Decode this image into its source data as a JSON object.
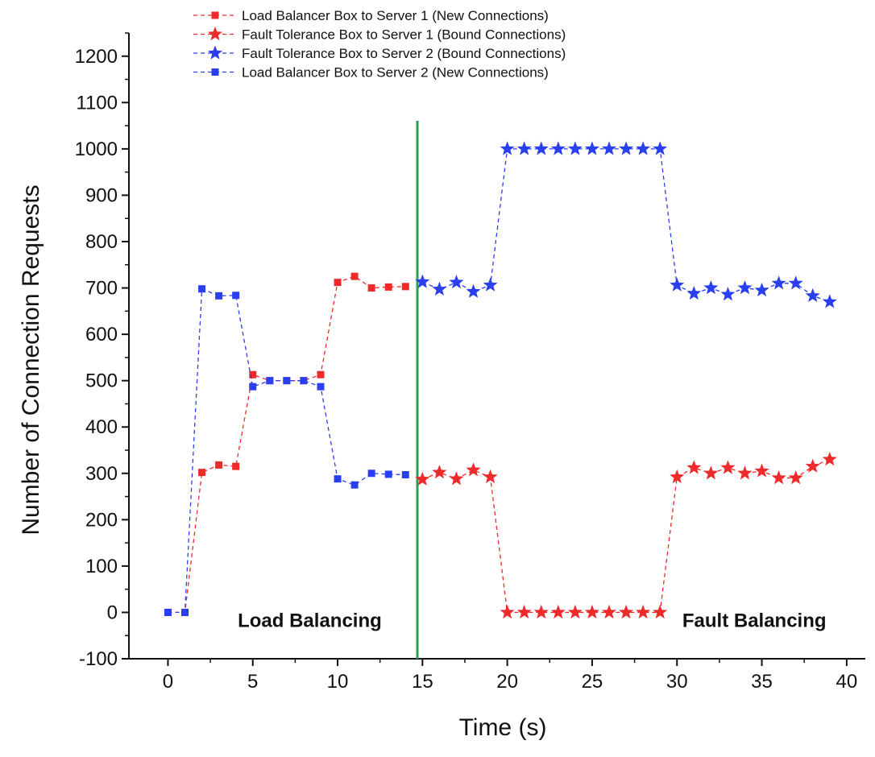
{
  "chart_data": {
    "type": "line",
    "title": "",
    "xlabel": "Time (s)",
    "ylabel": "Number of Connection Requests",
    "xlim": [
      -2.3,
      41.1
    ],
    "ylim": [
      -100,
      1250
    ],
    "x_ticks": [
      0,
      5,
      10,
      15,
      20,
      25,
      30,
      35,
      40
    ],
    "y_ticks": [
      -100,
      0,
      100,
      200,
      300,
      400,
      500,
      600,
      700,
      800,
      900,
      1000,
      1100,
      1200
    ],
    "grid": false,
    "legend_position": "top",
    "divider": {
      "x": 14.7,
      "color": "#2e9e4f"
    },
    "annotations": [
      {
        "text": "Load Balancing",
        "x": 12.6,
        "y": 0
      },
      {
        "text": "Fault Balancing",
        "x": 38.8,
        "y": 0
      }
    ],
    "series": [
      {
        "name": "Load Balancer Box to Server 1 (New Connections)",
        "color": "#ee2a2a",
        "marker": "square",
        "x": [
          0,
          1,
          2,
          3,
          4,
          5,
          6,
          7,
          8,
          9,
          10,
          11,
          12,
          13,
          14
        ],
        "y": [
          0,
          0,
          302,
          318,
          315,
          513,
          500,
          500,
          500,
          513,
          712,
          725,
          700,
          702,
          703
        ]
      },
      {
        "name": "Fault Tolerance Box to Server 1 (Bound Connections)",
        "color": "#ee2a2a",
        "marker": "star",
        "x": [
          15,
          16,
          17,
          18,
          19,
          20,
          21,
          22,
          23,
          24,
          25,
          26,
          27,
          28,
          29,
          30,
          31,
          32,
          33,
          34,
          35,
          36,
          37,
          38,
          39
        ],
        "y": [
          287,
          302,
          288,
          307,
          292,
          0,
          0,
          0,
          0,
          0,
          0,
          0,
          0,
          0,
          0,
          292,
          312,
          300,
          312,
          300,
          305,
          290,
          290,
          315,
          330
        ]
      },
      {
        "name": "Fault Tolerance Box to Server 2 (Bound Connections)",
        "color": "#2a3ff0",
        "marker": "star",
        "x": [
          15,
          16,
          17,
          18,
          19,
          20,
          21,
          22,
          23,
          24,
          25,
          26,
          27,
          28,
          29,
          30,
          31,
          32,
          33,
          34,
          35,
          36,
          37,
          38,
          39
        ],
        "y": [
          713,
          697,
          712,
          692,
          706,
          1000,
          1000,
          1000,
          1000,
          1000,
          1000,
          1000,
          1000,
          1000,
          1000,
          706,
          688,
          700,
          686,
          700,
          695,
          710,
          710,
          683,
          670
        ]
      },
      {
        "name": "Load Balancer Box to Server 2 (New Connections)",
        "color": "#2a3ff0",
        "marker": "square",
        "x": [
          0,
          1,
          2,
          3,
          4,
          5,
          6,
          7,
          8,
          9,
          10,
          11,
          12,
          13,
          14
        ],
        "y": [
          0,
          0,
          698,
          683,
          684,
          487,
          500,
          500,
          500,
          487,
          288,
          275,
          300,
          298,
          297
        ]
      }
    ]
  }
}
